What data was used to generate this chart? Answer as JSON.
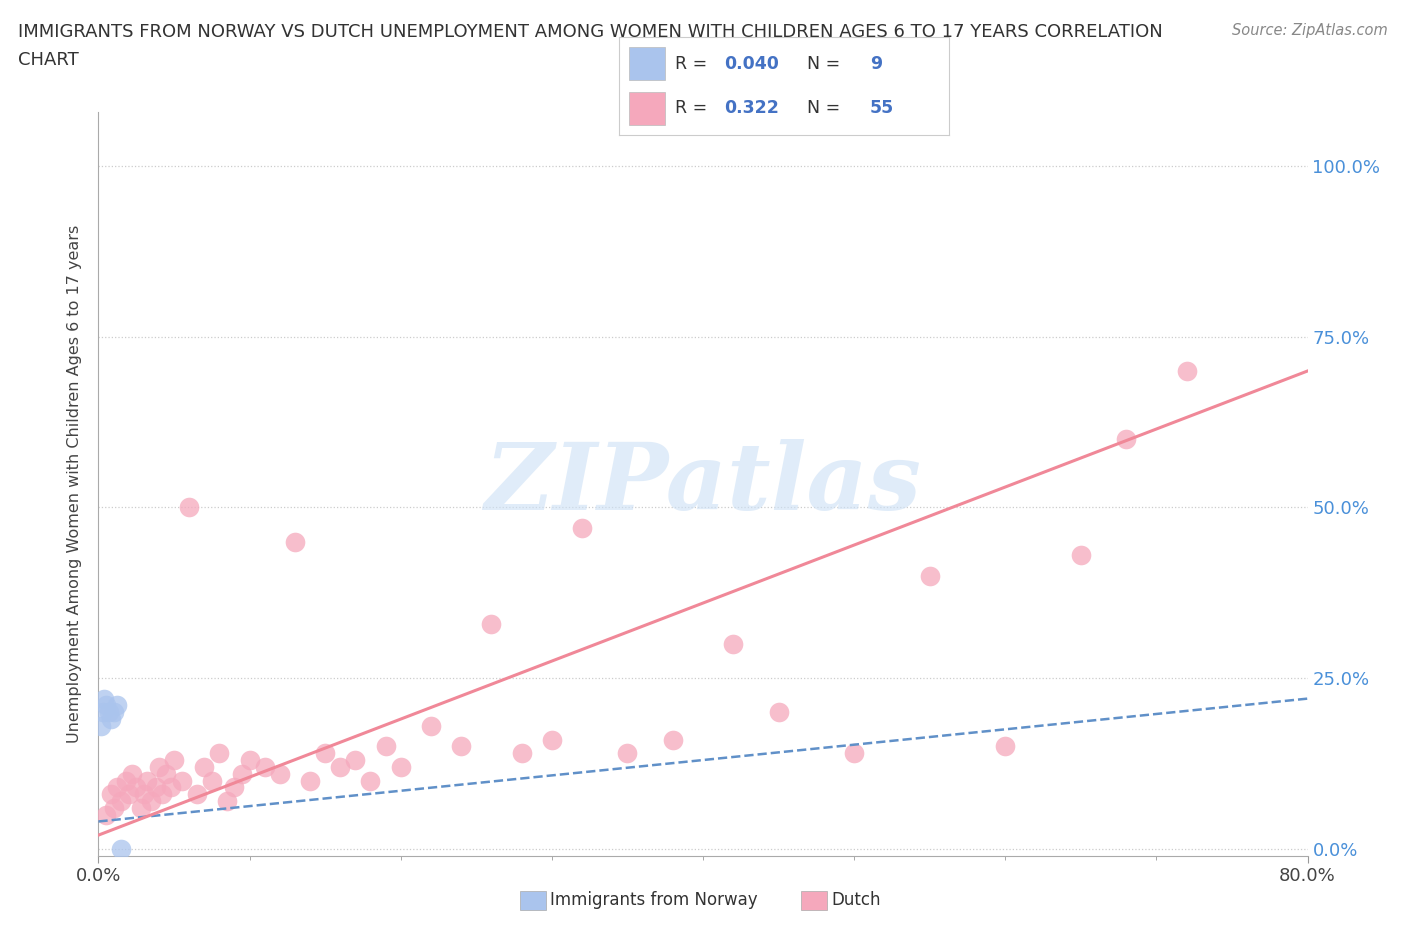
{
  "title_line1": "IMMIGRANTS FROM NORWAY VS DUTCH UNEMPLOYMENT AMONG WOMEN WITH CHILDREN AGES 6 TO 17 YEARS CORRELATION",
  "title_line2": "CHART",
  "source": "Source: ZipAtlas.com",
  "ylabel": "Unemployment Among Women with Children Ages 6 to 17 years",
  "watermark": "ZIPatlas",
  "norway_color": "#aac4ed",
  "dutch_color": "#f5a8bc",
  "norway_line_color": "#90b4e0",
  "dutch_line_color": "#f08090",
  "legend_blue": "#4472c4",
  "norway_R": "0.040",
  "norway_N": "9",
  "dutch_R": "0.322",
  "dutch_N": "55",
  "xlim": [
    0,
    0.8
  ],
  "ylim": [
    -0.01,
    1.08
  ],
  "norway_x": [
    0.002,
    0.003,
    0.004,
    0.005,
    0.007,
    0.008,
    0.01,
    0.012,
    0.015
  ],
  "norway_y": [
    0.18,
    0.2,
    0.22,
    0.21,
    0.2,
    0.19,
    0.2,
    0.21,
    0.0
  ],
  "dutch_x": [
    0.005,
    0.008,
    0.01,
    0.012,
    0.015,
    0.018,
    0.02,
    0.022,
    0.025,
    0.028,
    0.03,
    0.032,
    0.035,
    0.038,
    0.04,
    0.042,
    0.045,
    0.048,
    0.05,
    0.055,
    0.06,
    0.065,
    0.07,
    0.075,
    0.08,
    0.085,
    0.09,
    0.095,
    0.1,
    0.11,
    0.12,
    0.13,
    0.14,
    0.15,
    0.16,
    0.17,
    0.18,
    0.19,
    0.2,
    0.22,
    0.24,
    0.26,
    0.28,
    0.3,
    0.32,
    0.35,
    0.38,
    0.42,
    0.45,
    0.5,
    0.55,
    0.6,
    0.65,
    0.68,
    0.72
  ],
  "dutch_y": [
    0.05,
    0.08,
    0.06,
    0.09,
    0.07,
    0.1,
    0.08,
    0.11,
    0.09,
    0.06,
    0.08,
    0.1,
    0.07,
    0.09,
    0.12,
    0.08,
    0.11,
    0.09,
    0.13,
    0.1,
    0.5,
    0.08,
    0.12,
    0.1,
    0.14,
    0.07,
    0.09,
    0.11,
    0.13,
    0.12,
    0.11,
    0.45,
    0.1,
    0.14,
    0.12,
    0.13,
    0.1,
    0.15,
    0.12,
    0.18,
    0.15,
    0.33,
    0.14,
    0.16,
    0.47,
    0.14,
    0.16,
    0.3,
    0.2,
    0.14,
    0.4,
    0.15,
    0.43,
    0.6,
    0.7
  ],
  "norway_trend_x0": 0.0,
  "norway_trend_y0": 0.04,
  "norway_trend_x1": 0.8,
  "norway_trend_y1": 0.22,
  "dutch_trend_x0": 0.0,
  "dutch_trend_y0": 0.02,
  "dutch_trend_x1": 0.8,
  "dutch_trend_y1": 0.7
}
